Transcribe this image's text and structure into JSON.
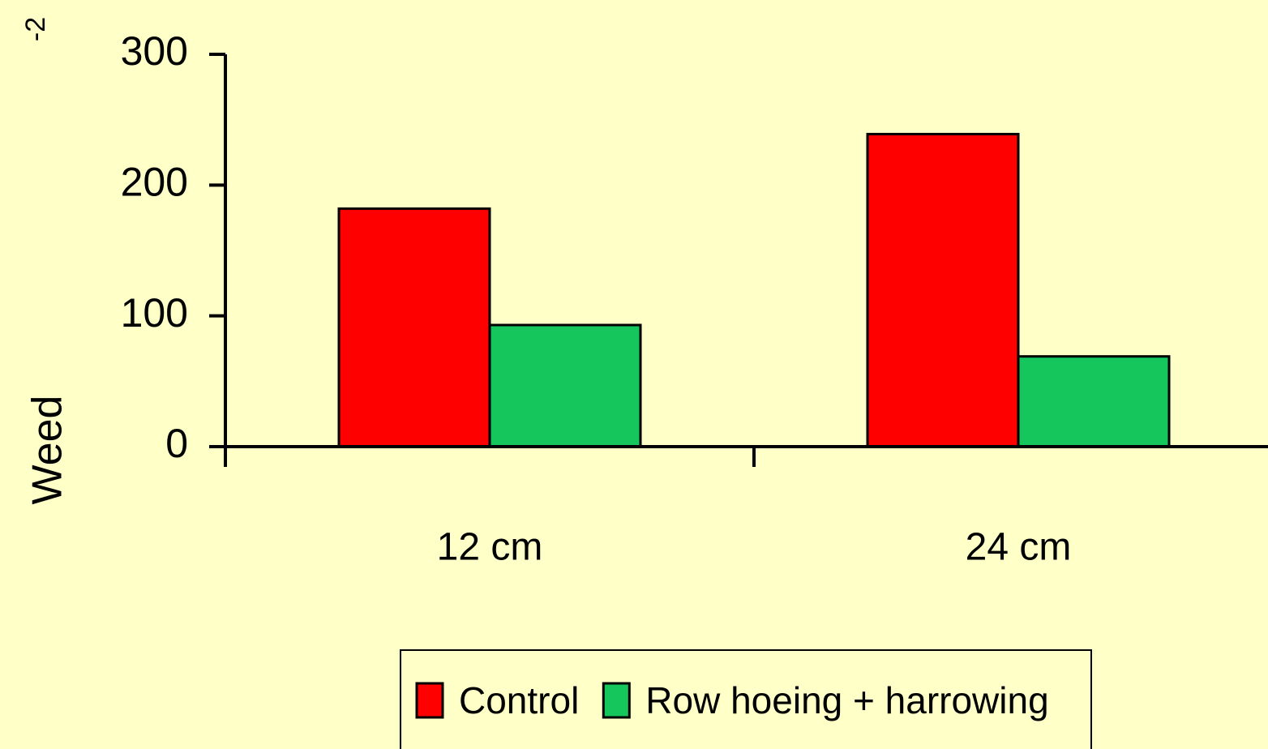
{
  "chart_data": {
    "type": "bar",
    "y_label": "Weed",
    "annotations": [
      "-2"
    ],
    "categories": [
      "12 cm",
      "24 cm"
    ],
    "series": [
      {
        "name": "Control",
        "color": "#ff0000",
        "values": [
          182,
          239
        ]
      },
      {
        "name": "Row hoeing + harrowing",
        "color": "#14c65c",
        "values": [
          93,
          69
        ]
      }
    ],
    "ylim": [
      0,
      300
    ],
    "yticks": [
      0,
      100,
      200,
      300
    ],
    "grid": false,
    "legend": "bottom"
  }
}
